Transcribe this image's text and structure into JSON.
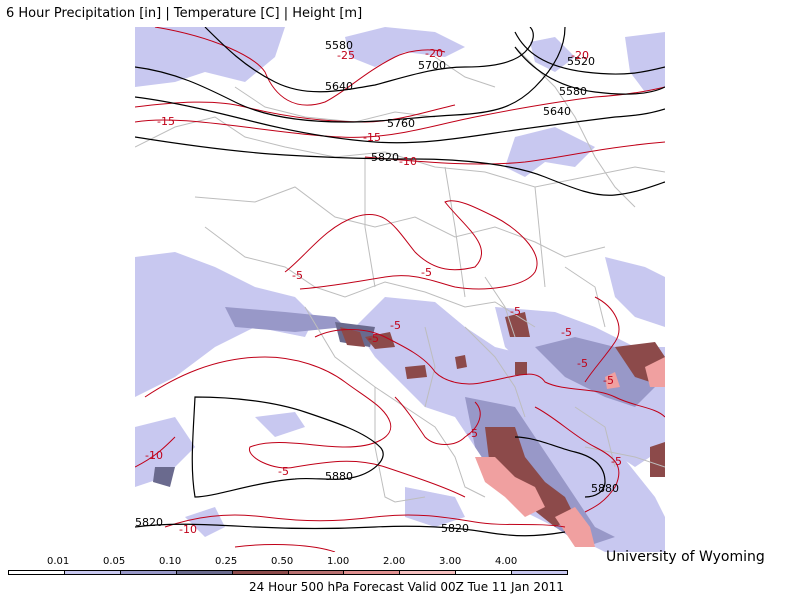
{
  "header": {
    "title": "6 Hour Precipitation [in] | Temperature [C] | Height [m]"
  },
  "credit": "University of Wyoming",
  "footer": "24 Hour 500 hPa Forecast Valid 00Z Tue 11 Jan 2011",
  "legend": {
    "labels": [
      "0.01",
      "0.05",
      "0.10",
      "0.25",
      "0.50",
      "1.00",
      "2.00",
      "3.00",
      "4.00"
    ],
    "colors": [
      "#ffffff",
      "#c8c8f0",
      "#9898c8",
      "#6a6a8e",
      "#8c4a4a",
      "#b87070",
      "#e09090",
      "#f6c0c0",
      "#ffffff",
      "#c8c8f0"
    ]
  },
  "map_labels": {
    "height": [
      "5580",
      "5700",
      "5640",
      "5760",
      "5820",
      "5520",
      "5580",
      "5640",
      "5880",
      "5880",
      "5820",
      "5820"
    ],
    "temperature": [
      "-25",
      "-20",
      "-20",
      "-15",
      "-15",
      "-10",
      "-5",
      "-5",
      "-5",
      "-5",
      "-5",
      "-5",
      "-5",
      "-5",
      "-5",
      "-5",
      "-10",
      "-5",
      "-10"
    ]
  },
  "colors": {
    "precip_light": "#c8c8f0",
    "precip_mid": "#9898c8",
    "precip_dark": "#6a6a8e",
    "precip_brown": "#8c4a4a",
    "precip_pink": "#f0a0a0",
    "temperature_contour": "#c00018",
    "height_contour": "#000000",
    "borders": "#bdbdbd"
  }
}
